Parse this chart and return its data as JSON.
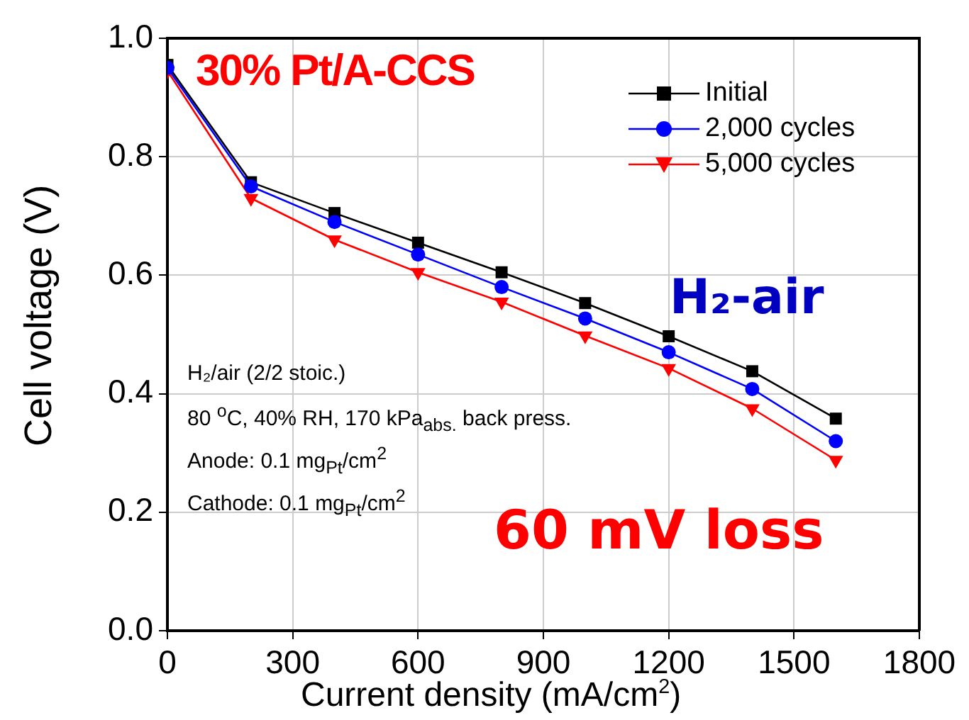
{
  "chart_data": {
    "type": "line",
    "xlabel": "Current density (mA/cm$^{2}$)",
    "ylabel": "Cell voltage (V)",
    "x": [
      0,
      200,
      400,
      600,
      800,
      1000,
      1200,
      1400,
      1600
    ],
    "series": [
      {
        "name": "Initial",
        "color": "#000000",
        "marker": "square",
        "values": [
          0.955,
          0.757,
          0.705,
          0.655,
          0.605,
          0.553,
          0.497,
          0.438,
          0.358
        ]
      },
      {
        "name": "2,000 cycles",
        "color": "#0000ff",
        "marker": "circle",
        "values": [
          0.95,
          0.75,
          0.69,
          0.635,
          0.58,
          0.527,
          0.47,
          0.408,
          0.32
        ]
      },
      {
        "name": "5,000 cycles",
        "color": "#ff0000",
        "marker": "triangle",
        "values": [
          0.945,
          0.73,
          0.66,
          0.605,
          0.555,
          0.498,
          0.443,
          0.375,
          0.288
        ]
      }
    ],
    "xlim": [
      0,
      1800
    ],
    "xticks": [
      0,
      300,
      600,
      900,
      1200,
      1500,
      1800
    ],
    "ylim": [
      0,
      1
    ],
    "yticks": [
      {
        "value": 0,
        "label": "0.0"
      },
      0.2,
      0.4,
      0.6,
      0.8,
      {
        "value": 1,
        "label": "1.0"
      }
    ],
    "grid": true,
    "legend": "top right",
    "line_style": "solid",
    "annotations": [
      "30% Pt/A-CCS",
      "H₂-air",
      "H₂/air (2/2 stoic.)",
      "80 $^{o}$C, 40% RH, 170 kPa$_{abs.}$ back press.",
      "Anode: 0.1 mg$_{Pt}$/cm$^{2}$",
      "Cathode: 0.1 mg$_{Pt}$/cm$^{2}$",
      "60 mV loss"
    ]
  }
}
